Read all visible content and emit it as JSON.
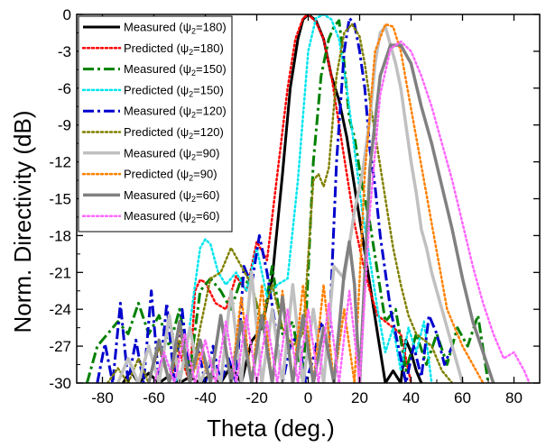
{
  "chart_data": {
    "type": "line",
    "xlabel": "Theta (deg.)",
    "ylabel": "Norm. Directivity (dB)",
    "xlim": [
      -90,
      90
    ],
    "ylim": [
      -30,
      0
    ],
    "xticks": [
      -80,
      -60,
      -40,
      -20,
      0,
      20,
      40,
      60,
      80
    ],
    "yticks": [
      0,
      -3,
      -6,
      -9,
      -12,
      -15,
      -18,
      -21,
      -24,
      -27,
      -30
    ],
    "grid": false,
    "legend_position": "top-left",
    "series": [
      {
        "name": "Measured (ψ2=180)",
        "label_main": "Measured (ψ",
        "label_sub": "2",
        "label_tail": "=180)",
        "color": "#000000",
        "dash": "solid",
        "width": 3,
        "x": [
          -72,
          -69,
          -66,
          -62,
          -58,
          -54,
          -50,
          -46,
          -42,
          -38,
          -34,
          -30,
          -26,
          -22,
          -18,
          -14,
          -10,
          -7,
          -4,
          -2,
          0,
          3,
          6,
          9,
          12,
          15,
          18,
          21,
          24,
          27,
          30,
          33,
          36,
          38,
          40,
          42,
          44
        ],
        "y": [
          -30,
          -29,
          -30,
          -29.2,
          -30,
          -29.4,
          -30,
          -29.5,
          -30,
          -29.3,
          -30,
          -28.6,
          -30,
          -26.6,
          -25.5,
          -21.5,
          -13,
          -6,
          -2,
          -0.4,
          0,
          -0.5,
          -2,
          -5,
          -7,
          -10,
          -14,
          -18,
          -22,
          -26,
          -30,
          -29,
          -30,
          -26.5,
          -27.5,
          -29,
          -30
        ]
      },
      {
        "name": "Predicted (ψ2=180)",
        "label_main": "Predicted (ψ",
        "label_sub": "2",
        "label_tail": "=180)",
        "color": "#ff0000",
        "dash": "dotted",
        "width": 2.5,
        "x": [
          -62,
          -58,
          -54,
          -50,
          -46,
          -44,
          -42,
          -40,
          -36,
          -32,
          -28,
          -24,
          -20,
          -16,
          -12,
          -8,
          -5,
          -2,
          0,
          3,
          6,
          9,
          12,
          15,
          18,
          21,
          24,
          27,
          30,
          33,
          36,
          38,
          40
        ],
        "y": [
          -30,
          -27,
          -30,
          -27.5,
          -30,
          -22.5,
          -21.6,
          -21.8,
          -23.5,
          -24,
          -21.3,
          -22.5,
          -18.5,
          -20,
          -13,
          -6,
          -2,
          -0.3,
          0,
          -0.6,
          -2,
          -5,
          -9,
          -13,
          -17,
          -20,
          -22.5,
          -24.5,
          -25,
          -25.5,
          -26,
          -28,
          -30
        ]
      },
      {
        "name": "Measured (ψ2=150)",
        "label_main": "Measured (ψ",
        "label_sub": "2",
        "label_tail": "=150)",
        "color": "#008000",
        "dash": "dashdot",
        "width": 3,
        "x": [
          -86,
          -82,
          -78,
          -74,
          -70,
          -66,
          -62,
          -58,
          -54,
          -50,
          -46,
          -42,
          -38,
          -34,
          -30,
          -26,
          -22,
          -18,
          -14,
          -10,
          -6,
          -2,
          2,
          5,
          8,
          10,
          12,
          14,
          16,
          18,
          21,
          24,
          27,
          30,
          34,
          38,
          42,
          46,
          50,
          54,
          58,
          62,
          66,
          70
        ],
        "y": [
          -30,
          -27,
          -26,
          -25,
          -26,
          -23.5,
          -26,
          -24.5,
          -27,
          -24,
          -29,
          -22.5,
          -21.5,
          -22.5,
          -24,
          -21.5,
          -22,
          -25.5,
          -20.5,
          -26,
          -25,
          -30,
          -12,
          -5,
          -2,
          -1,
          -0.5,
          -4,
          -8.5,
          -10,
          -14,
          -17,
          -21,
          -25,
          -24,
          -29,
          -26,
          -28.5,
          -26,
          -28.5,
          -25.5,
          -27,
          -24.5,
          -30
        ]
      },
      {
        "name": "Predicted (ψ2=150)",
        "label_main": "Predicted (ψ",
        "label_sub": "2",
        "label_tail": "=150)",
        "color": "#00e5ee",
        "dash": "dotted",
        "width": 2.5,
        "x": [
          -60,
          -56,
          -52,
          -48,
          -44,
          -42,
          -40,
          -38,
          -35,
          -32,
          -28,
          -24,
          -20,
          -16,
          -12,
          -8,
          -4,
          0,
          3,
          6,
          9,
          12,
          15,
          18,
          21,
          24,
          27,
          30,
          33,
          36,
          39,
          42,
          45,
          48
        ],
        "y": [
          -30,
          -27.5,
          -30,
          -28.5,
          -22,
          -19,
          -18.3,
          -18.7,
          -21,
          -22,
          -21,
          -22.5,
          -19,
          -23,
          -22,
          -21.5,
          -13.5,
          -3,
          -0.3,
          0,
          -0.4,
          -2,
          -6,
          -11,
          -16,
          -20,
          -24,
          -27.5,
          -25.5,
          -29,
          -25.5,
          -27.5,
          -25,
          -30
        ]
      },
      {
        "name": "Measured (ψ2=120)",
        "label_main": "Measured (ψ",
        "label_sub": "2",
        "label_tail": "=120)",
        "color": "#0000cd",
        "dash": "dashdot",
        "width": 3,
        "x": [
          -82,
          -79,
          -76,
          -73,
          -70,
          -67,
          -64,
          -61,
          -58,
          -55,
          -52,
          -49,
          -46,
          -43,
          -40,
          -37,
          -34,
          -31,
          -28,
          -25,
          -22,
          -19,
          -16,
          -13,
          -10,
          -7,
          -4,
          -1,
          2,
          5,
          8,
          11,
          14,
          16,
          18,
          20,
          22,
          24,
          26,
          28,
          30,
          32,
          35,
          38,
          41,
          44,
          47,
          50,
          53,
          56,
          60
        ],
        "y": [
          -30,
          -26.8,
          -30,
          -23.5,
          -30,
          -26.5,
          -30,
          -22.5,
          -30,
          -23.5,
          -30,
          -24,
          -30,
          -27,
          -30,
          -27,
          -30,
          -28,
          -30,
          -20.5,
          -22,
          -18,
          -21,
          -25,
          -30,
          -27,
          -26,
          -30,
          -28,
          -25,
          -27,
          -12,
          -3,
          -0.3,
          -0.8,
          -3,
          -6,
          -11,
          -14,
          -18,
          -21,
          -24,
          -27,
          -30,
          -27,
          -29.5,
          -24.5,
          -26,
          -28.5,
          -27,
          -30
        ]
      },
      {
        "name": "Predicted (ψ2=120)",
        "label_main": "Predicted (ψ",
        "label_sub": "2",
        "label_tail": "=120)",
        "color": "#808000",
        "dash": "dotted",
        "width": 2.5,
        "x": [
          -78,
          -74,
          -70,
          -66,
          -62,
          -58,
          -54,
          -50,
          -46,
          -42,
          -38,
          -34,
          -30,
          -26,
          -22,
          -18,
          -14,
          -10,
          -6,
          -2,
          2,
          4,
          6,
          8,
          11,
          14,
          17,
          20,
          22,
          24,
          27,
          30,
          33,
          36,
          39,
          42,
          45,
          48,
          52,
          56
        ],
        "y": [
          -30,
          -28.8,
          -30,
          -28,
          -30,
          -27,
          -30,
          -26.5,
          -30,
          -25.5,
          -21.5,
          -21,
          -19,
          -20.5,
          -22,
          -25,
          -22,
          -25.5,
          -27,
          -26,
          -13.5,
          -13,
          -14,
          -12.5,
          -5,
          -1.5,
          -0.8,
          -1.8,
          -4,
          -7,
          -11,
          -15,
          -19,
          -22,
          -24.5,
          -26,
          -26.5,
          -27,
          -29,
          -30
        ]
      },
      {
        "name": "Measured (ψ2=90)",
        "label_main": "Measured (ψ",
        "label_sub": "2",
        "label_tail": "=90)",
        "color": "#c0c0c0",
        "dash": "solid",
        "width": 3.5,
        "x": [
          -74,
          -70,
          -66,
          -62,
          -58,
          -54,
          -50,
          -46,
          -42,
          -38,
          -34,
          -30,
          -26,
          -22,
          -18,
          -14,
          -10,
          -6,
          -2,
          2,
          6,
          10,
          14,
          18,
          21,
          24,
          26,
          28,
          30,
          32,
          34,
          36,
          38,
          40,
          42,
          44,
          46,
          48,
          50,
          52,
          54,
          56,
          58,
          60
        ],
        "y": [
          -30,
          -28,
          -30,
          -27,
          -30,
          -24.5,
          -30,
          -25.5,
          -30,
          -28,
          -30,
          -22.5,
          -30,
          -21,
          -30,
          -24,
          -30,
          -22,
          -30,
          -24,
          -30,
          -20.5,
          -21.5,
          -16,
          -13,
          -8.5,
          -4,
          -1.5,
          -1,
          -2.5,
          -4,
          -6,
          -9,
          -12,
          -14.5,
          -17.5,
          -19,
          -21,
          -22.5,
          -24,
          -25.5,
          -27,
          -28.5,
          -30
        ]
      },
      {
        "name": "Predicted (ψ2=90)",
        "label_main": "Predicted (ψ",
        "label_sub": "2",
        "label_tail": "=90)",
        "color": "#ff8000",
        "dash": "dotted",
        "width": 2.5,
        "x": [
          -62,
          -58,
          -54,
          -50,
          -46,
          -42,
          -38,
          -34,
          -30,
          -26,
          -22,
          -18,
          -14,
          -10,
          -6,
          -2,
          2,
          6,
          10,
          14,
          18,
          22,
          26,
          30,
          33,
          36,
          39,
          42,
          45,
          48,
          51,
          54,
          57,
          60,
          64,
          68
        ],
        "y": [
          -30,
          -26.5,
          -30,
          -25.5,
          -30,
          -27.5,
          -30,
          -24.5,
          -30,
          -23,
          -30,
          -22,
          -30,
          -22.5,
          -30,
          -22,
          -30,
          -22,
          -30,
          -24,
          -30,
          -13,
          -3,
          -0.8,
          -1,
          -3,
          -6.5,
          -10,
          -13.5,
          -17,
          -20.5,
          -24,
          -25.5,
          -27,
          -28.5,
          -30
        ]
      },
      {
        "name": "Measured (ψ2=60)",
        "label_main": "Measured (ψ",
        "label_sub": "2",
        "label_tail": "=60)",
        "color": "#808080",
        "dash": "solid",
        "width": 3.5,
        "x": [
          -62,
          -58,
          -54,
          -50,
          -46,
          -42,
          -38,
          -34,
          -30,
          -26,
          -22,
          -18,
          -14,
          -10,
          -6,
          -2,
          2,
          6,
          10,
          14,
          16,
          18,
          20,
          24,
          28,
          32,
          36,
          40,
          44,
          48,
          52,
          56,
          60,
          64,
          68,
          72
        ],
        "y": [
          -30,
          -26.5,
          -30,
          -25,
          -30,
          -26.5,
          -30,
          -24.5,
          -30,
          -25,
          -30,
          -24.5,
          -30,
          -23,
          -30,
          -24.5,
          -30,
          -25.5,
          -30,
          -21,
          -18.5,
          -22,
          -30,
          -12.5,
          -5,
          -2.5,
          -2.5,
          -4,
          -7.5,
          -10.5,
          -14,
          -17.5,
          -21.5,
          -25,
          -27.5,
          -30
        ]
      },
      {
        "name": "Measured (ψ2=60)",
        "label_main": "Measured (ψ",
        "label_sub": "2",
        "label_tail": "=60)",
        "color": "#ff66ff",
        "dash": "dotted",
        "width": 2.5,
        "x": [
          -60,
          -56,
          -52,
          -48,
          -44,
          -40,
          -36,
          -32,
          -28,
          -24,
          -20,
          -16,
          -12,
          -8,
          -4,
          0,
          4,
          8,
          12,
          16,
          20,
          24,
          28,
          32,
          36,
          40,
          44,
          48,
          52,
          56,
          60,
          64,
          68,
          72,
          76,
          80,
          84,
          86
        ],
        "y": [
          -30,
          -27.5,
          -30,
          -26,
          -30,
          -26.5,
          -30,
          -25,
          -30,
          -24.5,
          -30,
          -25,
          -30,
          -24,
          -30,
          -24,
          -30,
          -23.5,
          -30,
          -22.5,
          -30,
          -16,
          -6.5,
          -2.8,
          -2.2,
          -3,
          -5,
          -7.5,
          -10.5,
          -13.5,
          -17,
          -20.5,
          -23.5,
          -26,
          -28,
          -27.5,
          -29,
          -30
        ]
      }
    ]
  }
}
